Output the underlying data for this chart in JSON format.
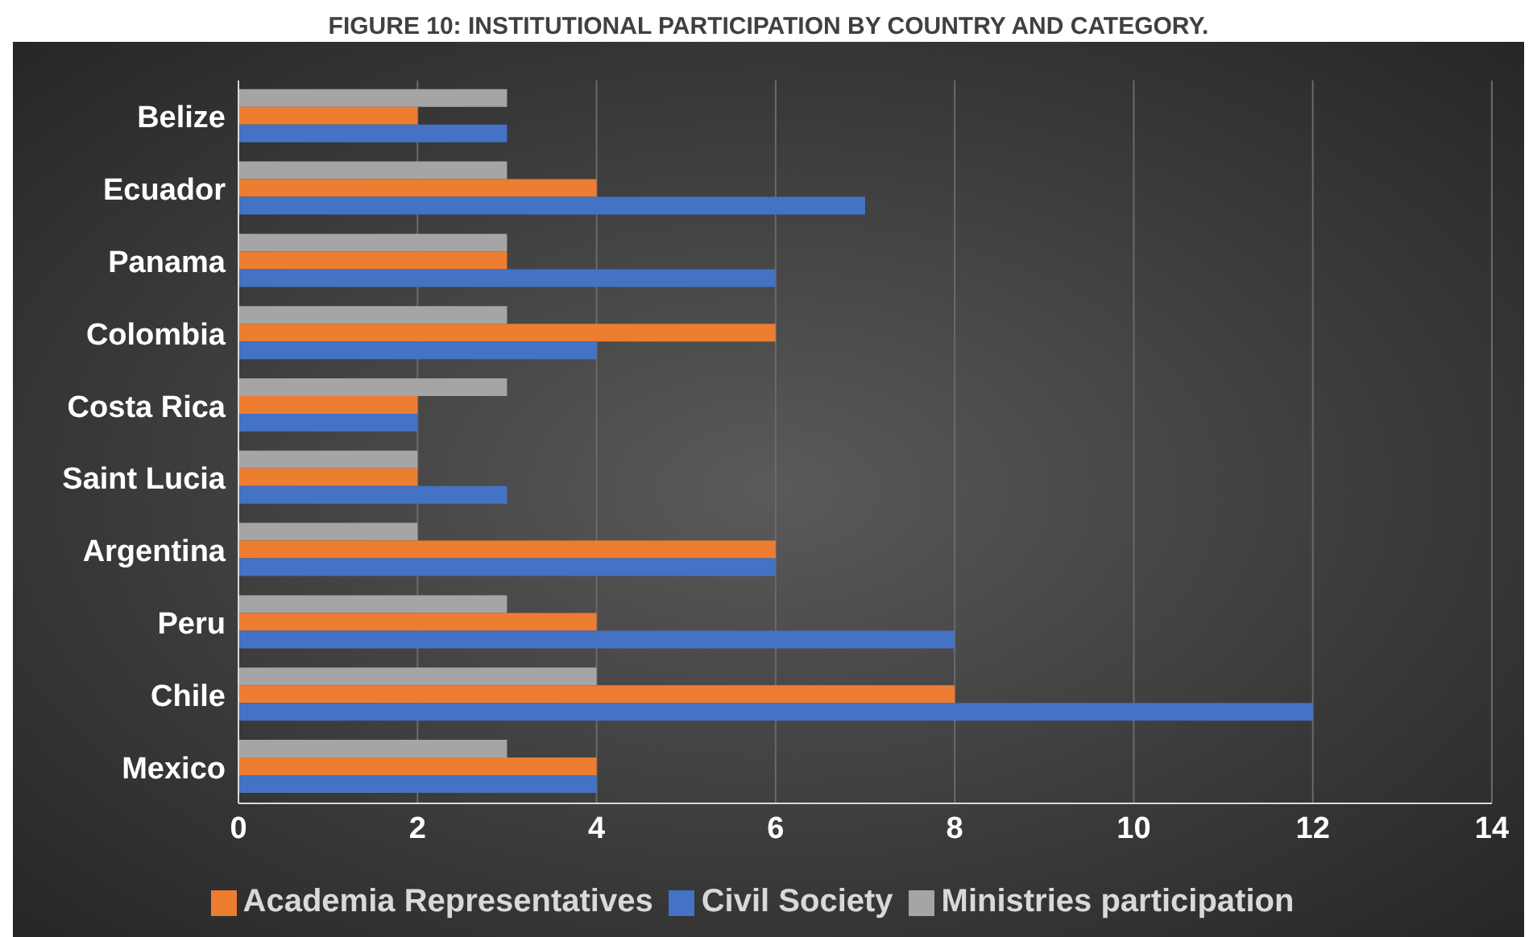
{
  "chart_data": {
    "type": "bar",
    "orientation": "horizontal",
    "title": "FIGURE 10: INSTITUTIONAL PARTICIPATION BY COUNTRY AND CATEGORY.",
    "categories": [
      "Belize",
      "Ecuador",
      "Panama",
      "Colombia",
      "Costa Rica",
      "Saint Lucia",
      "Argentina",
      "Peru",
      "Chile",
      "Mexico"
    ],
    "series": [
      {
        "name": "Ministries participation",
        "color": "#a5a5a5",
        "values": [
          3,
          3,
          3,
          3,
          3,
          2,
          2,
          3,
          4,
          3
        ]
      },
      {
        "name": "Academia Representatives",
        "color": "#ed7d31",
        "values": [
          2,
          4,
          3,
          6,
          2,
          2,
          6,
          4,
          8,
          4
        ]
      },
      {
        "name": "Civil Society",
        "color": "#4472c4",
        "values": [
          3,
          7,
          6,
          4,
          2,
          3,
          6,
          8,
          12,
          4
        ]
      }
    ],
    "xlim": [
      0,
      14
    ],
    "xticks": [
      0,
      2,
      4,
      6,
      8,
      10,
      12,
      14
    ],
    "grid": "x",
    "legend": "bottom"
  }
}
